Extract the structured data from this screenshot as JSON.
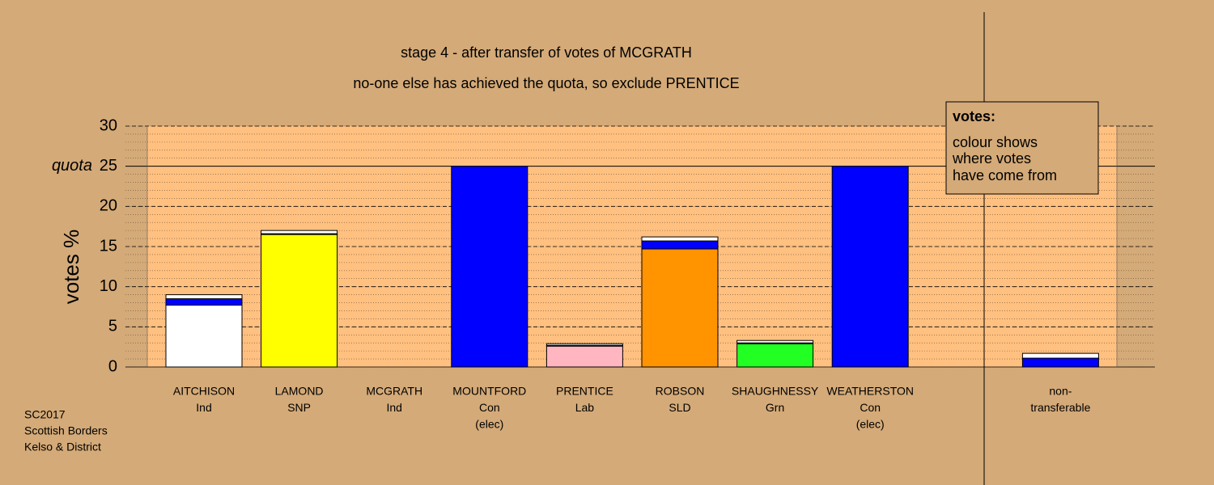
{
  "chart_data": {
    "type": "stacked-bar",
    "title": "stage 4 - after transfer of votes of MCGRATH",
    "subtitle": "no-one else has achieved the quota, so exclude PRENTICE",
    "y_label": "votes %",
    "quota_label": "quota",
    "categories": [
      [
        "AITCHISON",
        "Ind"
      ],
      [
        "LAMOND",
        "SNP"
      ],
      [
        "MCGRATH",
        "Ind"
      ],
      [
        "MOUNTFORD",
        "Con",
        "(elec)"
      ],
      [
        "PRENTICE",
        "Lab"
      ],
      [
        "ROBSON",
        "SLD"
      ],
      [
        "SHAUGHNESSY",
        "Grn"
      ],
      [
        "WEATHERSTON",
        "Con",
        "(elec)"
      ],
      [
        "non-",
        "transferable"
      ]
    ],
    "series": [
      {
        "colors": [
          "#ffffff",
          "#ffff00",
          "#ffffff",
          "#0000ff",
          "#ffb6c1",
          "#ff9400",
          "#22ff22",
          "#0000ff",
          "#0000ff"
        ],
        "values": [
          7.7,
          16.5,
          0,
          25,
          2.6,
          14.7,
          2.9,
          25,
          1.1
        ]
      },
      {
        "color": "#0000ff",
        "values": [
          0.8,
          0.1,
          0,
          0,
          0.1,
          1.0,
          0.1,
          0,
          0
        ]
      },
      {
        "color": "#ffffff",
        "values": [
          0.5,
          0.4,
          0,
          0,
          0.2,
          0.5,
          0.3,
          0,
          0.6
        ]
      }
    ],
    "ylim": [
      0,
      30
    ],
    "yticks": [
      0,
      5,
      10,
      15,
      20,
      25,
      30
    ],
    "quota": 25,
    "grid": true,
    "minor_grid_step": 1,
    "legend": {
      "title": "votes:",
      "lines": [
        "colour shows",
        "where votes",
        "have come from"
      ]
    },
    "footer": [
      "SC2017",
      "Scottish Borders",
      "Kelso & District"
    ]
  }
}
